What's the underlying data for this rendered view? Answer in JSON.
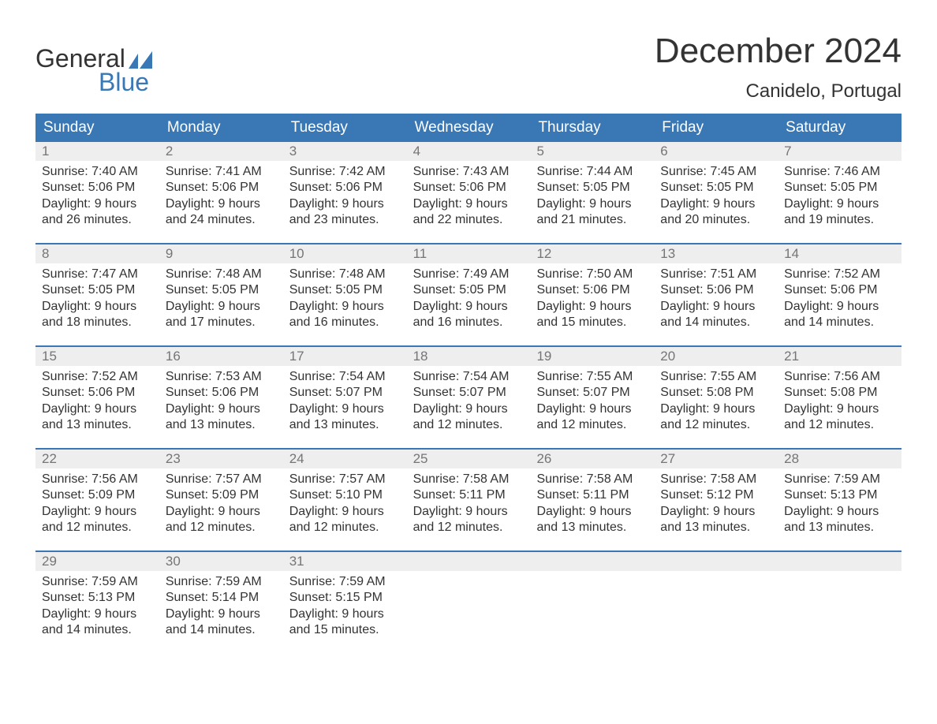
{
  "logo": {
    "line1": "General",
    "line2": "Blue",
    "flag_color": "#3a78b5"
  },
  "title": "December 2024",
  "location": "Canidelo, Portugal",
  "colors": {
    "header_bg": "#3a78b5",
    "header_text": "#ffffff",
    "daynum_bg": "#eeeeee",
    "daynum_text": "#757575",
    "body_text": "#333333",
    "week_border": "#3a78b5",
    "page_bg": "#ffffff"
  },
  "day_headers": [
    "Sunday",
    "Monday",
    "Tuesday",
    "Wednesday",
    "Thursday",
    "Friday",
    "Saturday"
  ],
  "weeks": [
    [
      {
        "n": "1",
        "sunrise": "Sunrise: 7:40 AM",
        "sunset": "Sunset: 5:06 PM",
        "d1": "Daylight: 9 hours",
        "d2": "and 26 minutes."
      },
      {
        "n": "2",
        "sunrise": "Sunrise: 7:41 AM",
        "sunset": "Sunset: 5:06 PM",
        "d1": "Daylight: 9 hours",
        "d2": "and 24 minutes."
      },
      {
        "n": "3",
        "sunrise": "Sunrise: 7:42 AM",
        "sunset": "Sunset: 5:06 PM",
        "d1": "Daylight: 9 hours",
        "d2": "and 23 minutes."
      },
      {
        "n": "4",
        "sunrise": "Sunrise: 7:43 AM",
        "sunset": "Sunset: 5:06 PM",
        "d1": "Daylight: 9 hours",
        "d2": "and 22 minutes."
      },
      {
        "n": "5",
        "sunrise": "Sunrise: 7:44 AM",
        "sunset": "Sunset: 5:05 PM",
        "d1": "Daylight: 9 hours",
        "d2": "and 21 minutes."
      },
      {
        "n": "6",
        "sunrise": "Sunrise: 7:45 AM",
        "sunset": "Sunset: 5:05 PM",
        "d1": "Daylight: 9 hours",
        "d2": "and 20 minutes."
      },
      {
        "n": "7",
        "sunrise": "Sunrise: 7:46 AM",
        "sunset": "Sunset: 5:05 PM",
        "d1": "Daylight: 9 hours",
        "d2": "and 19 minutes."
      }
    ],
    [
      {
        "n": "8",
        "sunrise": "Sunrise: 7:47 AM",
        "sunset": "Sunset: 5:05 PM",
        "d1": "Daylight: 9 hours",
        "d2": "and 18 minutes."
      },
      {
        "n": "9",
        "sunrise": "Sunrise: 7:48 AM",
        "sunset": "Sunset: 5:05 PM",
        "d1": "Daylight: 9 hours",
        "d2": "and 17 minutes."
      },
      {
        "n": "10",
        "sunrise": "Sunrise: 7:48 AM",
        "sunset": "Sunset: 5:05 PM",
        "d1": "Daylight: 9 hours",
        "d2": "and 16 minutes."
      },
      {
        "n": "11",
        "sunrise": "Sunrise: 7:49 AM",
        "sunset": "Sunset: 5:05 PM",
        "d1": "Daylight: 9 hours",
        "d2": "and 16 minutes."
      },
      {
        "n": "12",
        "sunrise": "Sunrise: 7:50 AM",
        "sunset": "Sunset: 5:06 PM",
        "d1": "Daylight: 9 hours",
        "d2": "and 15 minutes."
      },
      {
        "n": "13",
        "sunrise": "Sunrise: 7:51 AM",
        "sunset": "Sunset: 5:06 PM",
        "d1": "Daylight: 9 hours",
        "d2": "and 14 minutes."
      },
      {
        "n": "14",
        "sunrise": "Sunrise: 7:52 AM",
        "sunset": "Sunset: 5:06 PM",
        "d1": "Daylight: 9 hours",
        "d2": "and 14 minutes."
      }
    ],
    [
      {
        "n": "15",
        "sunrise": "Sunrise: 7:52 AM",
        "sunset": "Sunset: 5:06 PM",
        "d1": "Daylight: 9 hours",
        "d2": "and 13 minutes."
      },
      {
        "n": "16",
        "sunrise": "Sunrise: 7:53 AM",
        "sunset": "Sunset: 5:06 PM",
        "d1": "Daylight: 9 hours",
        "d2": "and 13 minutes."
      },
      {
        "n": "17",
        "sunrise": "Sunrise: 7:54 AM",
        "sunset": "Sunset: 5:07 PM",
        "d1": "Daylight: 9 hours",
        "d2": "and 13 minutes."
      },
      {
        "n": "18",
        "sunrise": "Sunrise: 7:54 AM",
        "sunset": "Sunset: 5:07 PM",
        "d1": "Daylight: 9 hours",
        "d2": "and 12 minutes."
      },
      {
        "n": "19",
        "sunrise": "Sunrise: 7:55 AM",
        "sunset": "Sunset: 5:07 PM",
        "d1": "Daylight: 9 hours",
        "d2": "and 12 minutes."
      },
      {
        "n": "20",
        "sunrise": "Sunrise: 7:55 AM",
        "sunset": "Sunset: 5:08 PM",
        "d1": "Daylight: 9 hours",
        "d2": "and 12 minutes."
      },
      {
        "n": "21",
        "sunrise": "Sunrise: 7:56 AM",
        "sunset": "Sunset: 5:08 PM",
        "d1": "Daylight: 9 hours",
        "d2": "and 12 minutes."
      }
    ],
    [
      {
        "n": "22",
        "sunrise": "Sunrise: 7:56 AM",
        "sunset": "Sunset: 5:09 PM",
        "d1": "Daylight: 9 hours",
        "d2": "and 12 minutes."
      },
      {
        "n": "23",
        "sunrise": "Sunrise: 7:57 AM",
        "sunset": "Sunset: 5:09 PM",
        "d1": "Daylight: 9 hours",
        "d2": "and 12 minutes."
      },
      {
        "n": "24",
        "sunrise": "Sunrise: 7:57 AM",
        "sunset": "Sunset: 5:10 PM",
        "d1": "Daylight: 9 hours",
        "d2": "and 12 minutes."
      },
      {
        "n": "25",
        "sunrise": "Sunrise: 7:58 AM",
        "sunset": "Sunset: 5:11 PM",
        "d1": "Daylight: 9 hours",
        "d2": "and 12 minutes."
      },
      {
        "n": "26",
        "sunrise": "Sunrise: 7:58 AM",
        "sunset": "Sunset: 5:11 PM",
        "d1": "Daylight: 9 hours",
        "d2": "and 13 minutes."
      },
      {
        "n": "27",
        "sunrise": "Sunrise: 7:58 AM",
        "sunset": "Sunset: 5:12 PM",
        "d1": "Daylight: 9 hours",
        "d2": "and 13 minutes."
      },
      {
        "n": "28",
        "sunrise": "Sunrise: 7:59 AM",
        "sunset": "Sunset: 5:13 PM",
        "d1": "Daylight: 9 hours",
        "d2": "and 13 minutes."
      }
    ],
    [
      {
        "n": "29",
        "sunrise": "Sunrise: 7:59 AM",
        "sunset": "Sunset: 5:13 PM",
        "d1": "Daylight: 9 hours",
        "d2": "and 14 minutes."
      },
      {
        "n": "30",
        "sunrise": "Sunrise: 7:59 AM",
        "sunset": "Sunset: 5:14 PM",
        "d1": "Daylight: 9 hours",
        "d2": "and 14 minutes."
      },
      {
        "n": "31",
        "sunrise": "Sunrise: 7:59 AM",
        "sunset": "Sunset: 5:15 PM",
        "d1": "Daylight: 9 hours",
        "d2": "and 15 minutes."
      },
      {
        "empty": true
      },
      {
        "empty": true
      },
      {
        "empty": true
      },
      {
        "empty": true
      }
    ]
  ]
}
